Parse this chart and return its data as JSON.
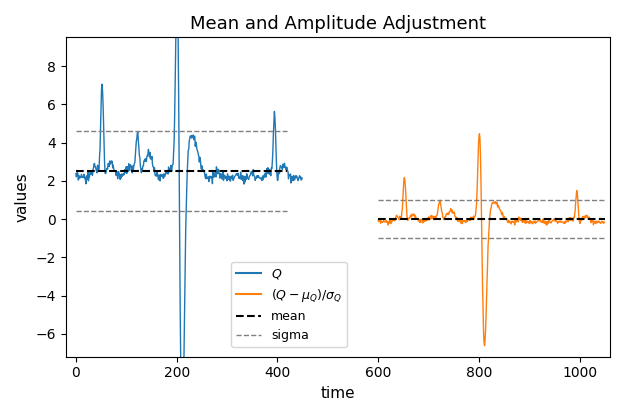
{
  "title": "Mean and Amplitude Adjustment",
  "xlabel": "time",
  "ylabel": "values",
  "mu_Q": 2.5,
  "sigma_Q": 2.1,
  "blue_color": "#1f77b4",
  "orange_color": "#ff7f0e",
  "mean_color": "black",
  "sigma_color": "gray",
  "figsize": [
    6.25,
    4.16
  ],
  "dpi": 100,
  "xlim": [
    -20,
    1060
  ],
  "ylim": [
    -7.2,
    9.5
  ],
  "xticks": [
    0,
    200,
    400,
    600,
    800,
    1000
  ],
  "signal_x_end": 450,
  "signal2_x_start": 600,
  "signal2_x_end": 1050
}
